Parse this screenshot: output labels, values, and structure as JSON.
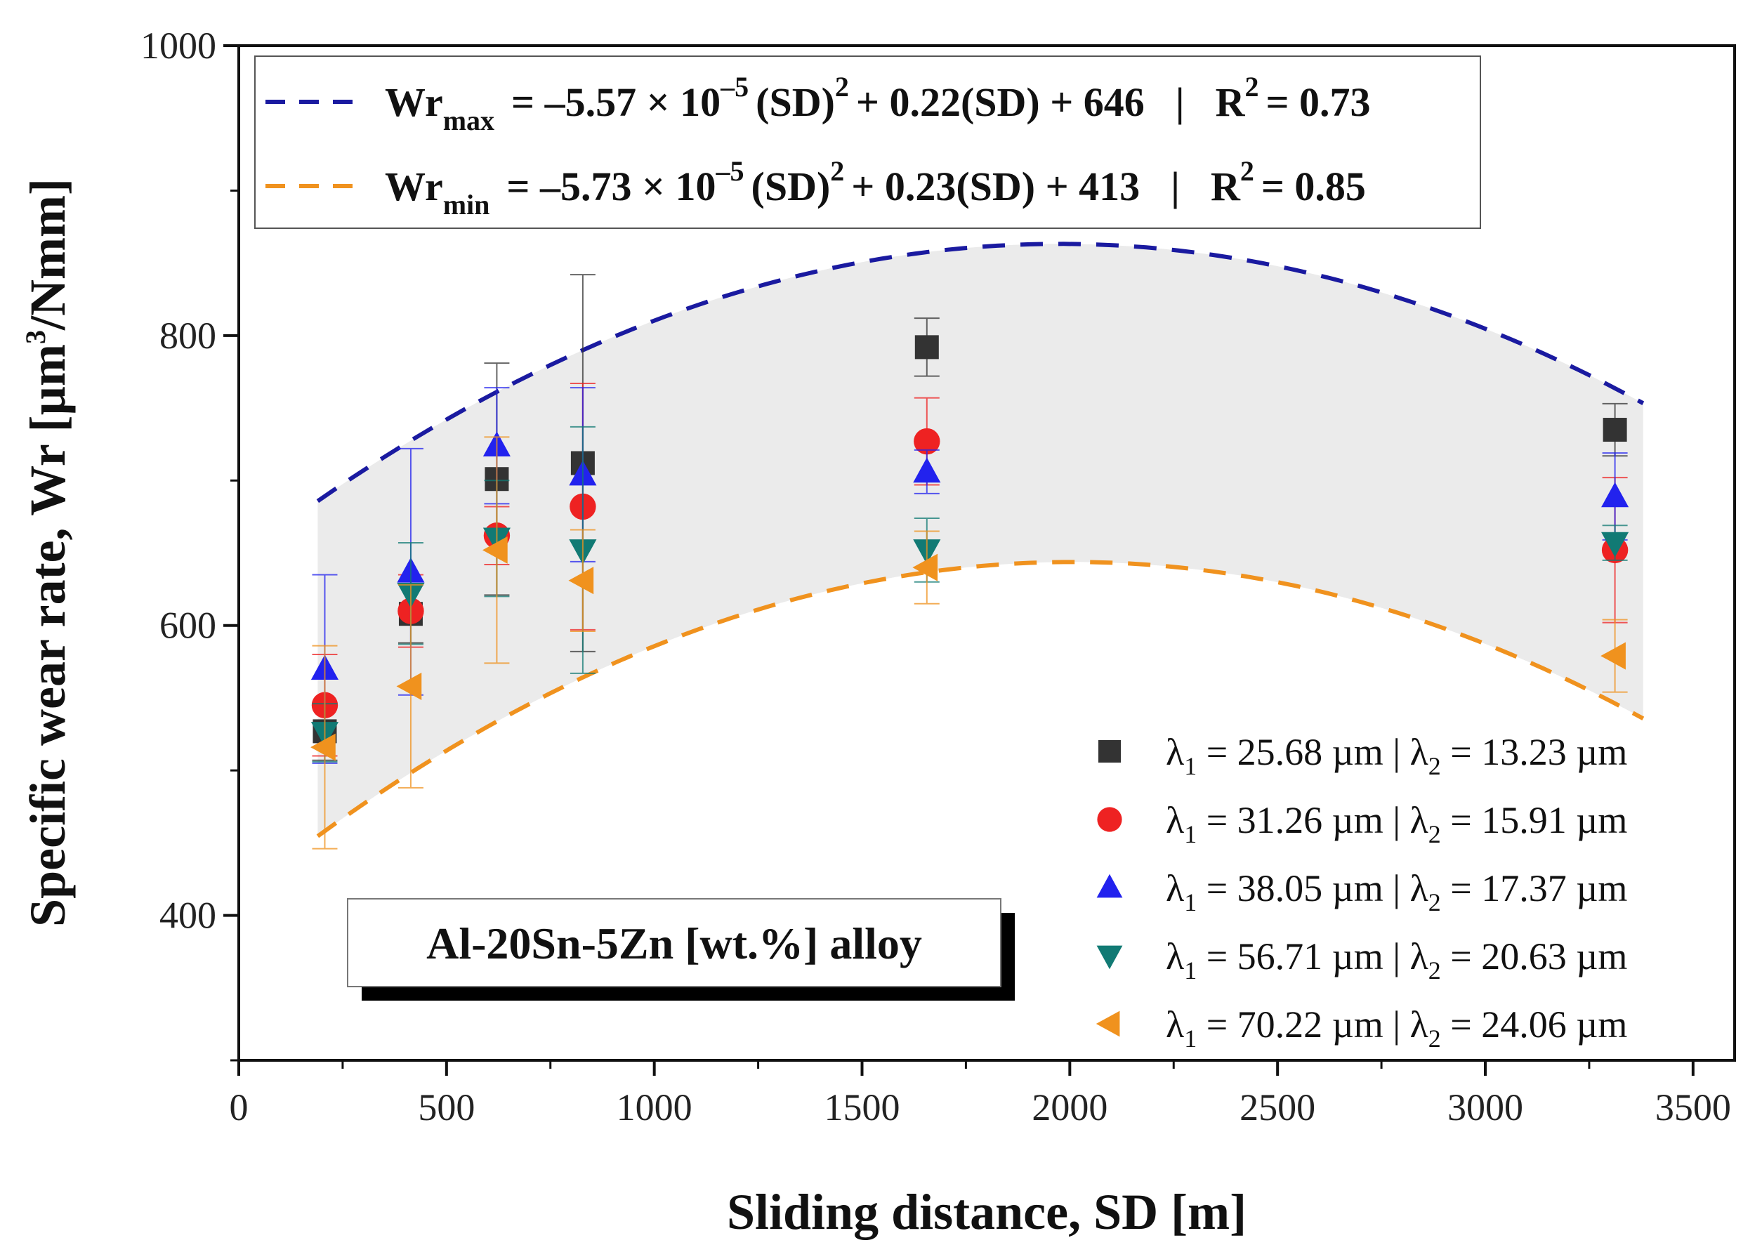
{
  "chart_data": {
    "type": "scatter",
    "xlabel": "Sliding distance, SD [m]",
    "ylabel_main": "Specific wear rate, Wr [µm",
    "ylabel_sup": "3",
    "ylabel_tail": "/Nmm]",
    "xlim": [
      0,
      3600
    ],
    "ylim": [
      300,
      1000
    ],
    "xticks": [
      0,
      500,
      1000,
      1500,
      2000,
      2500,
      3000,
      3500
    ],
    "yticks": [
      400,
      600,
      800,
      1000
    ],
    "x": [
      207,
      414,
      621,
      828,
      1656,
      3312
    ],
    "series": [
      {
        "name": "λ1 = 25.68 µm | λ2 = 13.23 µm",
        "l1": "25.68 µm",
        "l2": "13.23 µm",
        "marker": "square",
        "color": "#333333",
        "values": [
          527,
          608,
          701,
          712,
          792,
          735
        ],
        "errors": [
          20,
          20,
          80,
          130,
          20,
          18
        ]
      },
      {
        "name": "λ1 = 31.26 µm | λ2 = 15.91 µm",
        "l1": "31.26 µm",
        "l2": "15.91 µm",
        "marker": "circle",
        "color": "#ee2222",
        "values": [
          545,
          610,
          662,
          682,
          727,
          652
        ],
        "errors": [
          35,
          25,
          20,
          85,
          30,
          50
        ]
      },
      {
        "name": "λ1 = 38.05 µm | λ2 = 17.37 µm",
        "l1": "38.05 µm",
        "l2": "17.37 µm",
        "marker": "triangle-up",
        "color": "#2222ee",
        "values": [
          570,
          637,
          724,
          704,
          706,
          689
        ],
        "errors": [
          65,
          85,
          40,
          60,
          15,
          30
        ]
      },
      {
        "name": "λ1 = 56.71 µm | λ2 = 20.63 µm",
        "l1": "56.71 µm",
        "l2": "20.63 µm",
        "marker": "triangle-down",
        "color": "#117a74",
        "values": [
          526,
          622,
          660,
          652,
          652,
          657
        ],
        "errors": [
          20,
          35,
          40,
          85,
          22,
          12
        ]
      },
      {
        "name": "λ1 = 70.22 µm | λ2 = 24.06 µm",
        "l1": "70.22 µm",
        "l2": "24.06 µm",
        "marker": "triangle-left",
        "color": "#f0921e",
        "values": [
          516,
          558,
          652,
          631,
          640,
          579
        ],
        "errors": [
          70,
          70,
          78,
          35,
          25,
          25
        ]
      }
    ],
    "fits": [
      {
        "name": "Wrmax",
        "label_main": "Wr",
        "label_sub": "max",
        "eq_a": "= –5.57 × 10",
        "eq_a_sup": "–5",
        "eq_b": "(SD)",
        "eq_b_sup": "2",
        "eq_c": "+ 0.22(SD) + 646",
        "sep": "|",
        "r2_main": "R",
        "r2_sup": "2",
        "r2_value": "= 0.73",
        "a": -5.57e-05,
        "b": 0.22,
        "c": 646,
        "x_range": [
          190,
          3380
        ],
        "color": "#1a1aa0",
        "style": "dashed"
      },
      {
        "name": "Wrmin",
        "label_main": "Wr",
        "label_sub": "min",
        "eq_a": "= –5.73 × 10",
        "eq_a_sup": "–5",
        "eq_b": "(SD)",
        "eq_b_sup": "2",
        "eq_c": "+ 0.23(SD) + 413",
        "sep": "|",
        "r2_main": "R",
        "r2_sup": "2",
        "r2_value": "= 0.85",
        "a": -5.73e-05,
        "b": 0.23,
        "c": 413,
        "x_range": [
          190,
          3380
        ],
        "color": "#f0921e",
        "style": "dashed"
      }
    ],
    "band_color": "#ebebeb",
    "annotation": "Al-20Sn-5Zn [wt.%] alloy",
    "legend_position": "bottom-right",
    "legend_prefix": "λ",
    "legend_sub1": "1",
    "legend_sub2": "2"
  }
}
